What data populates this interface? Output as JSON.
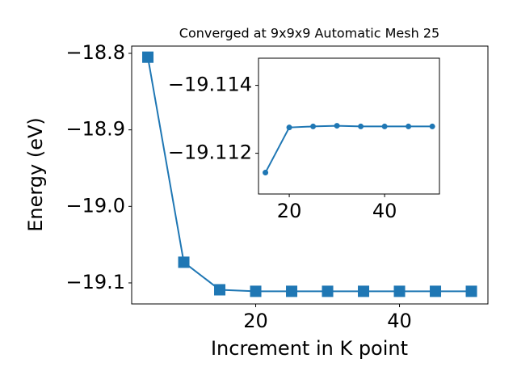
{
  "chart_data": [
    {
      "type": "line",
      "title": "Converged at 9x9x9 Automatic Mesh 25",
      "x_label": "Increment in K point",
      "y_label": "Energy (eV)",
      "x": [
        5,
        10,
        15,
        20,
        25,
        30,
        35,
        40,
        45,
        50
      ],
      "series": [
        {
          "color": "#1f77b4",
          "marker": "square",
          "values": [
            -18.805,
            -19.073,
            -19.109,
            -19.111,
            -19.111,
            -19.111,
            -19.111,
            -19.111,
            -19.111,
            -19.111
          ]
        }
      ],
      "xlim": [
        2.75,
        52.3
      ],
      "ylim": [
        -19.1275,
        -18.7905
      ],
      "xticks": [
        20,
        40
      ],
      "yticks": [
        {
          "value": -18.8,
          "label": "−18.8"
        },
        {
          "value": -18.9,
          "label": "−18.9"
        },
        {
          "value": -19.0,
          "label": "−19.0"
        },
        {
          "value": -19.1,
          "label": "−19.1"
        }
      ]
    },
    {
      "type": "line",
      "x": [
        15,
        20,
        25,
        30,
        35,
        40,
        45,
        50
      ],
      "series": [
        {
          "color": "#1f77b4",
          "marker": "circle",
          "values": [
            -19.11143,
            -19.11276,
            -19.11279,
            -19.11281,
            -19.11279,
            -19.11279,
            -19.11279,
            -19.11279
          ]
        }
      ],
      "xlim": [
        13.55,
        51.5
      ],
      "ylim": [
        -19.1108,
        -19.1148
      ],
      "xticks": [
        20,
        40
      ],
      "yticks": [
        {
          "value": -19.114,
          "label": "−19.114"
        },
        {
          "value": -19.112,
          "label": "−19.112"
        }
      ]
    }
  ]
}
